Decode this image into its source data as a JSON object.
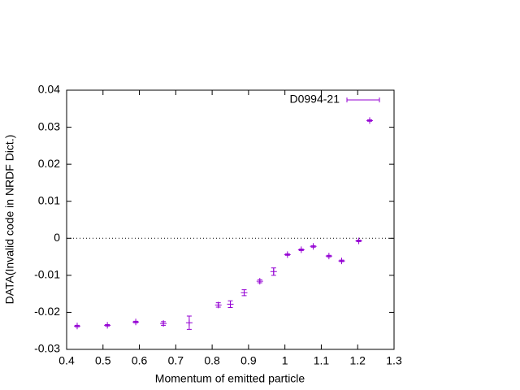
{
  "chart_data": {
    "type": "errorbar",
    "xlabel": "Momentum of emitted particle",
    "ylabel": "DATA(Invalid code in NRDF Dict.)",
    "x": [
      0.429,
      0.512,
      0.59,
      0.666,
      0.737,
      0.817,
      0.85,
      0.888,
      0.931,
      0.969,
      1.007,
      1.045,
      1.078,
      1.121,
      1.156,
      1.203,
      1.233
    ],
    "series": [
      {
        "name": "D0994-21",
        "color": "#9400d3",
        "values": [
          -0.0237,
          -0.0235,
          -0.0226,
          -0.023,
          -0.0228,
          -0.018,
          -0.0178,
          -0.0147,
          -0.0116,
          -0.009,
          -0.0044,
          -0.0031,
          -0.0022,
          -0.0048,
          -0.0061,
          -0.0007,
          0.0318
        ],
        "errors": [
          0.0002,
          0.0002,
          0.0002,
          0.0005,
          0.0018,
          0.0006,
          0.0009,
          0.0008,
          0.0004,
          0.001,
          0.0002,
          0.0002,
          0.0002,
          0.0002,
          0.0002,
          0.0002,
          0.0002
        ]
      }
    ],
    "xlim": [
      0.4,
      1.3
    ],
    "xticks": [
      0.4,
      0.5,
      0.6,
      0.7,
      0.8,
      0.9,
      1,
      1.1,
      1.2,
      1.3
    ],
    "ylim": [
      -0.03,
      0.04
    ],
    "yticks": [
      -0.03,
      -0.02,
      -0.01,
      0,
      0.01,
      0.02,
      0.03,
      0.04
    ],
    "zero_line": true,
    "legend": "top-right"
  }
}
